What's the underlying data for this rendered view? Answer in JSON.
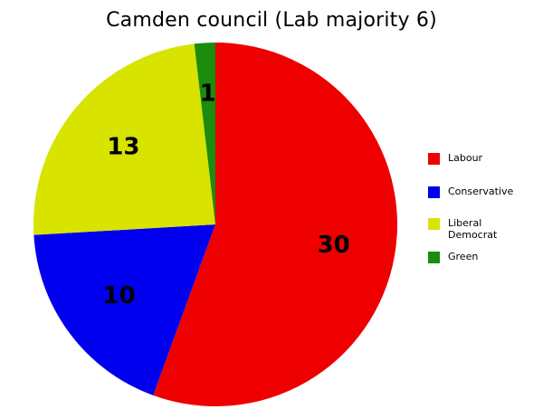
{
  "chart_data": {
    "type": "pie",
    "title": "Camden council (Lab majority 6)",
    "slices": [
      {
        "name": "Labour",
        "value": 30,
        "color": "#ee0000"
      },
      {
        "name": "Conservative",
        "value": 10,
        "color": "#0000ee"
      },
      {
        "name": "Liberal Democrat",
        "value": 13,
        "color": "#d8e300"
      },
      {
        "name": "Green",
        "value": 1,
        "color": "#1b8c0d"
      }
    ],
    "legend_position": "right",
    "start_angle_position": "top",
    "direction": "clockwise"
  }
}
